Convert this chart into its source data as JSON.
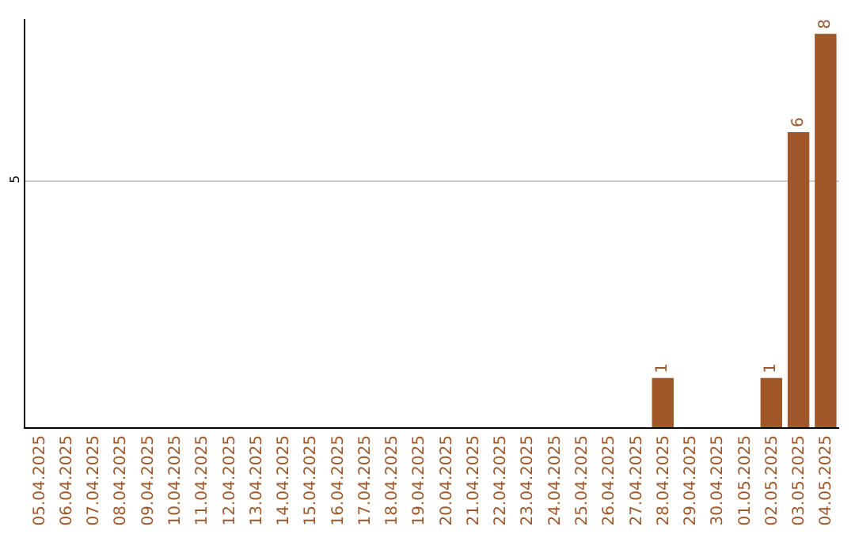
{
  "chart_data": {
    "type": "bar",
    "ylim": [
      0,
      8.3
    ],
    "yticks": [
      5
    ],
    "grid": "y",
    "categories": [
      "05.04.2025",
      "06.04.2025",
      "07.04.2025",
      "08.04.2025",
      "09.04.2025",
      "10.04.2025",
      "11.04.2025",
      "12.04.2025",
      "13.04.2025",
      "14.04.2025",
      "15.04.2025",
      "16.04.2025",
      "17.04.2025",
      "18.04.2025",
      "19.04.2025",
      "20.04.2025",
      "21.04.2025",
      "22.04.2025",
      "23.04.2025",
      "24.04.2025",
      "25.04.2025",
      "26.04.2025",
      "27.04.2025",
      "28.04.2025",
      "29.04.2025",
      "30.04.2025",
      "01.05.2025",
      "02.05.2025",
      "03.05.2025",
      "04.05.2025"
    ],
    "values": [
      null,
      null,
      null,
      null,
      null,
      null,
      null,
      null,
      null,
      null,
      null,
      null,
      null,
      null,
      null,
      null,
      null,
      null,
      null,
      null,
      null,
      null,
      null,
      1,
      null,
      null,
      null,
      1,
      6,
      8
    ],
    "value_labels": [
      null,
      null,
      null,
      null,
      null,
      null,
      null,
      null,
      null,
      null,
      null,
      null,
      null,
      null,
      null,
      null,
      null,
      null,
      null,
      null,
      null,
      null,
      null,
      "1",
      null,
      null,
      null,
      "1",
      "6",
      "8"
    ],
    "color": "#a0582a"
  }
}
